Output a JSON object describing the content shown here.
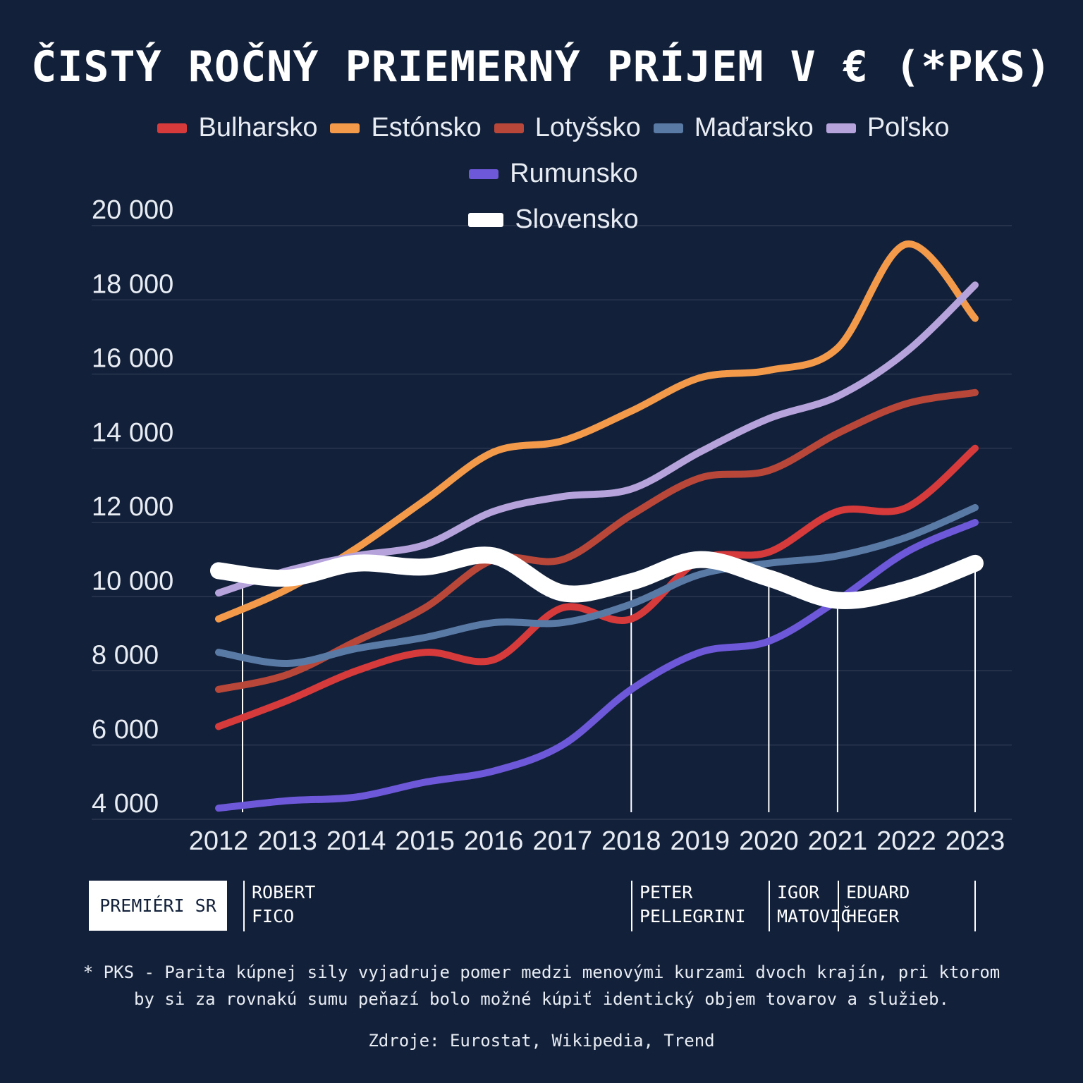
{
  "chart_data": {
    "type": "line",
    "title": "ČISTÝ ROČNÝ PRIEMERNÝ PRÍJEM V € (*PKS)",
    "x": [
      2012,
      2013,
      2014,
      2015,
      2016,
      2017,
      2018,
      2019,
      2020,
      2021,
      2022,
      2023
    ],
    "x_tick_labels": [
      "2012",
      "2013",
      "2014",
      "2015",
      "2016",
      "2017",
      "2018",
      "2019",
      "2020",
      "2021",
      "2022",
      "2023"
    ],
    "ylim": [
      4000,
      20000
    ],
    "y_ticks": [
      4000,
      6000,
      8000,
      10000,
      12000,
      14000,
      16000,
      18000,
      20000
    ],
    "y_tick_labels": [
      "4 000",
      "6 000",
      "8 000",
      "10 000",
      "12 000",
      "14 000",
      "16 000",
      "18 000",
      "20 000"
    ],
    "grid": true,
    "legend_position": "top-center",
    "series": [
      {
        "name": "Bulharsko",
        "color": "#d63a3a",
        "values": [
          6500,
          7200,
          8000,
          8500,
          8300,
          9700,
          9400,
          11000,
          11200,
          12300,
          12400,
          14000
        ]
      },
      {
        "name": "Estónsko",
        "color": "#f2994a",
        "values": [
          9400,
          10200,
          11300,
          12600,
          13900,
          14200,
          15000,
          15900,
          16100,
          16700,
          19500,
          17500
        ]
      },
      {
        "name": "Lotyšsko",
        "color": "#b8473a",
        "values": [
          7500,
          7900,
          8800,
          9700,
          11000,
          11000,
          12200,
          13200,
          13400,
          14400,
          15200,
          15500
        ]
      },
      {
        "name": "Maďarsko",
        "color": "#5a7aa6",
        "values": [
          8500,
          8200,
          8600,
          8900,
          9300,
          9300,
          9800,
          10600,
          10900,
          11100,
          11600,
          12400
        ]
      },
      {
        "name": "Poľsko",
        "color": "#b6a3dc",
        "values": [
          10100,
          10700,
          11100,
          11400,
          12300,
          12700,
          12900,
          13900,
          14800,
          15400,
          16600,
          18400
        ]
      },
      {
        "name": "Rumunsko",
        "color": "#6c58d8",
        "values": [
          4300,
          4500,
          4600,
          5000,
          5300,
          6000,
          7500,
          8500,
          8800,
          9900,
          11200,
          12000
        ]
      },
      {
        "name": "Slovensko",
        "color": "#ffffff",
        "values": [
          10700,
          10500,
          10900,
          10800,
          11100,
          10100,
          10400,
          11000,
          10500,
          9900,
          10200,
          10900
        ]
      }
    ],
    "annotations": [
      2012,
      2018,
      2020,
      2021,
      2023
    ]
  },
  "premiers": {
    "label": "PREMIÉRI SR",
    "items": [
      {
        "name": "ROBERT\nFICO",
        "from": 2012
      },
      {
        "name": "PETER\nPELLEGRINI",
        "from": 2018
      },
      {
        "name": "IGOR\nMATOVIČ",
        "from": 2020
      },
      {
        "name": "EDUARD\nHEGER",
        "from": 2021
      }
    ]
  },
  "footnote": "* PKS - Parita kúpnej sily vyjadruje pomer medzi menovými kurzami dvoch krajín, pri ktorom by si za rovnakú sumu peňazí bolo možné kúpiť identický objem tovarov a služieb.",
  "source": "Zdroje: Eurostat, Wikipedia, Trend"
}
